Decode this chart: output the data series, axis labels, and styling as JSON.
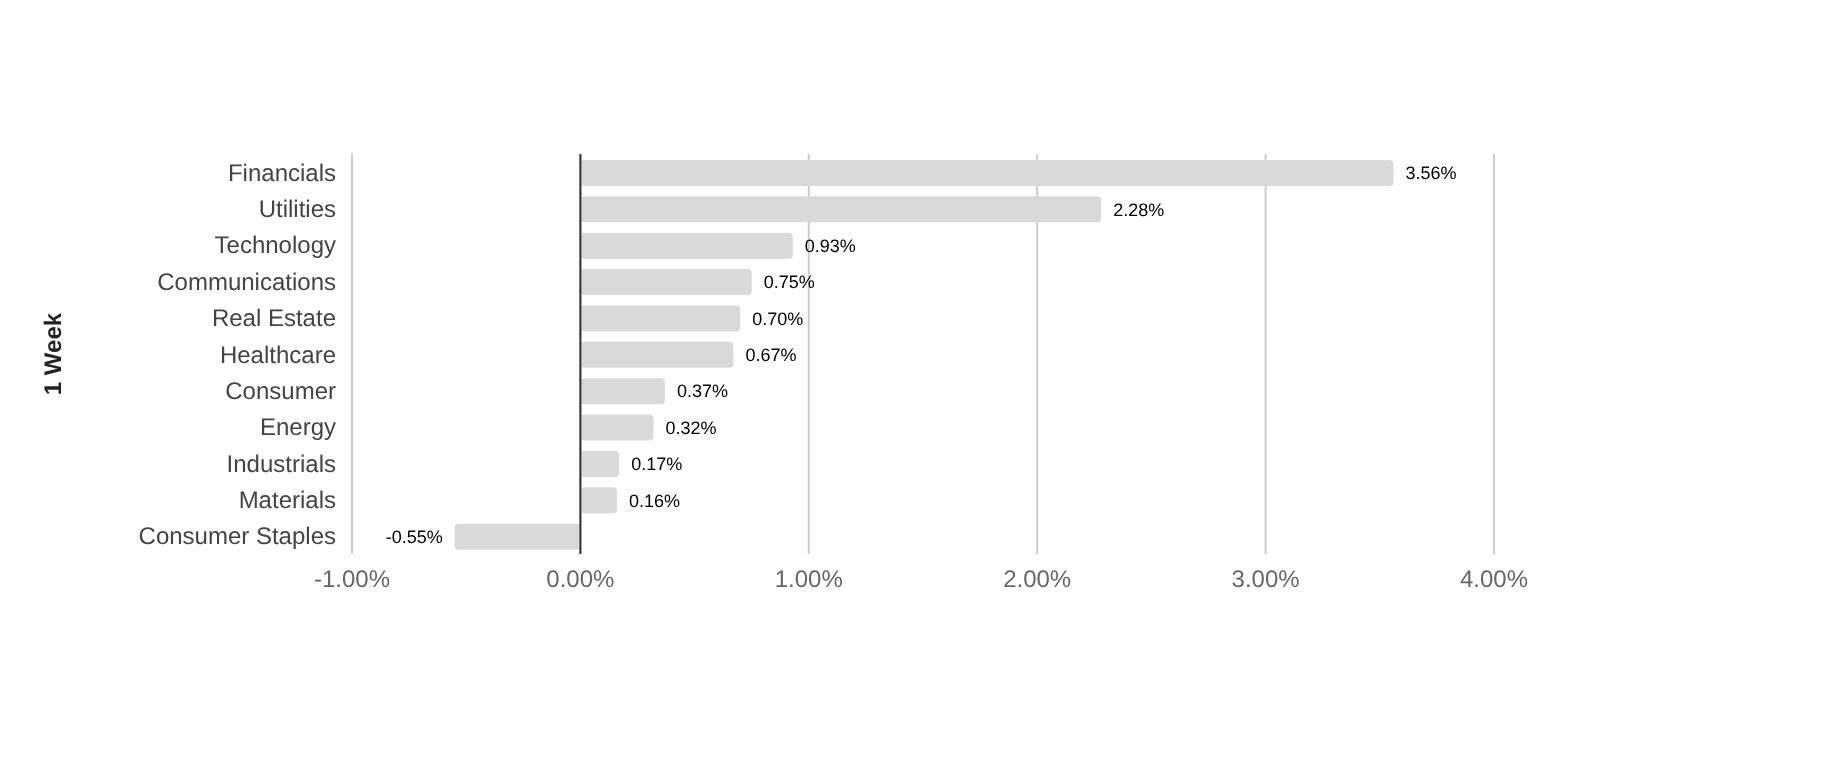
{
  "chart_data": {
    "type": "bar",
    "orientation": "horizontal",
    "ylabel": "1 Week",
    "categories": [
      "Financials",
      "Utilities",
      "Technology",
      "Communications",
      "Real Estate",
      "Healthcare",
      "Consumer",
      "Energy",
      "Industrials",
      "Materials",
      "Consumer Staples"
    ],
    "values": [
      3.56,
      2.28,
      0.93,
      0.75,
      0.7,
      0.67,
      0.37,
      0.32,
      0.17,
      0.16,
      -0.55
    ],
    "value_labels": [
      "3.56%",
      "2.28%",
      "0.93%",
      "0.75%",
      "0.70%",
      "0.67%",
      "0.37%",
      "0.32%",
      "0.17%",
      "0.16%",
      "-0.55%"
    ],
    "color": "#d9d9d9",
    "xlim": [
      -1,
      4
    ],
    "xticks": [
      {
        "value": -1,
        "label": "-1.00%"
      },
      {
        "value": 0,
        "label": "0.00%"
      },
      {
        "value": 1,
        "label": "1.00%"
      },
      {
        "value": 2,
        "label": "2.00%"
      },
      {
        "value": 3,
        "label": "3.00%"
      },
      {
        "value": 4,
        "label": "4.00%"
      }
    ],
    "ref_lines": [
      {
        "axis": "x",
        "value": 0,
        "color": "#333333"
      }
    ],
    "grid": "x",
    "legend": false
  }
}
